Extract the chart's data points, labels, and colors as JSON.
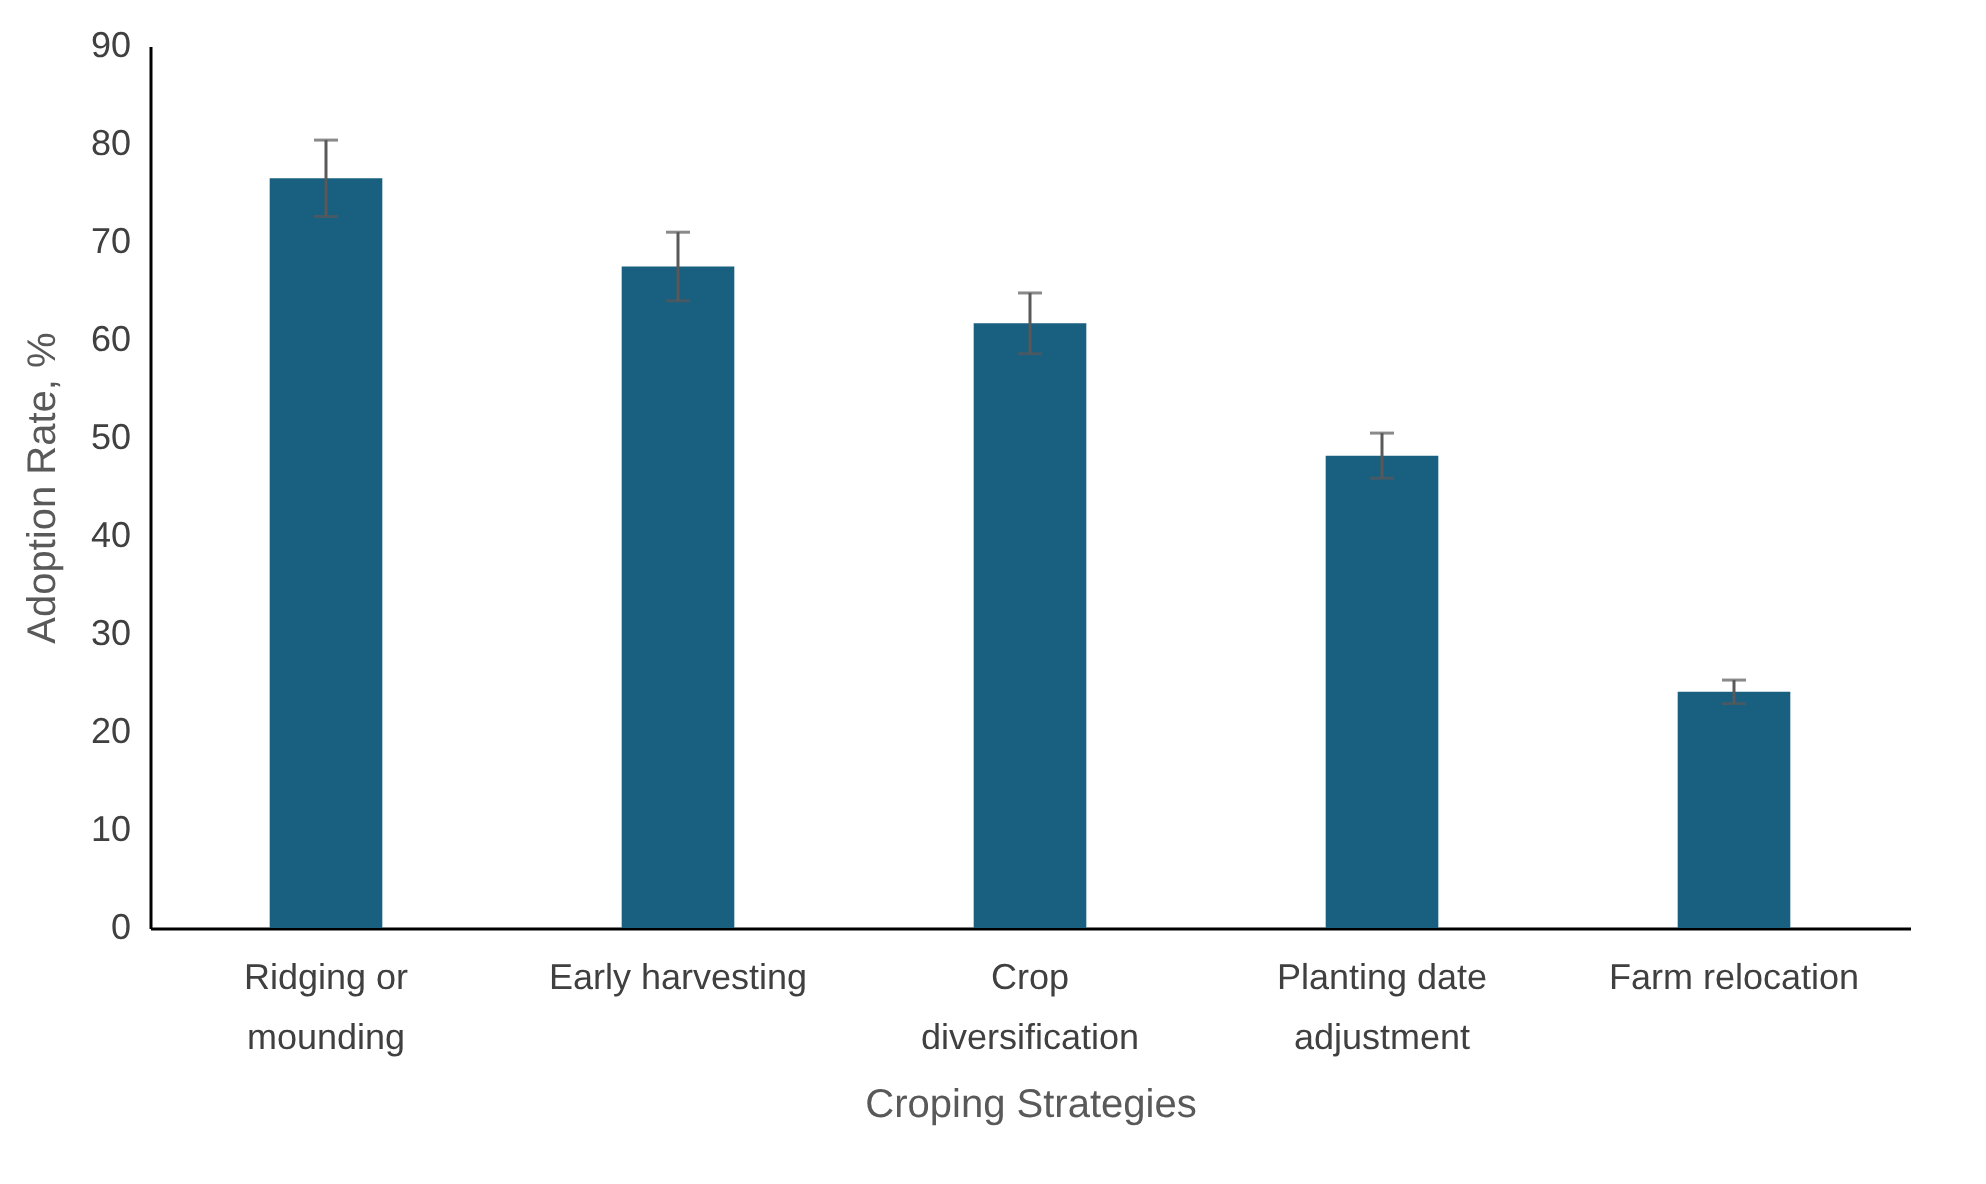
{
  "chart_data": {
    "type": "bar",
    "xlabel": "Croping Strategies",
    "ylabel": "Adoption Rate, %",
    "categories": [
      "Ridging or mounding",
      "Early harvesting",
      "Crop diversification",
      "Planting date adjustment",
      "Farm relocation"
    ],
    "values": [
      76.5,
      67.5,
      61.7,
      48.2,
      24.1
    ],
    "errors": [
      3.9,
      3.5,
      3.1,
      2.3,
      1.2
    ],
    "color": "#195f80",
    "ylim": [
      0,
      90
    ],
    "yticks": [
      0,
      10,
      20,
      30,
      40,
      50,
      60,
      70,
      80,
      90
    ],
    "grid": false
  }
}
